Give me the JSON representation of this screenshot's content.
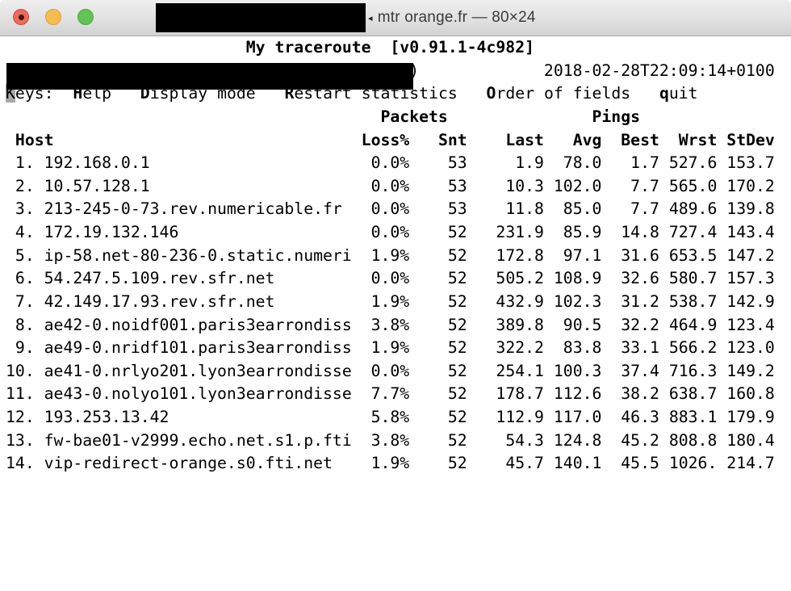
{
  "window": {
    "title": "mtr orange.fr — 80×24",
    "truncation_mark": "◂",
    "controls": {
      "close": "close",
      "minimize": "minimize",
      "zoom": "zoom"
    }
  },
  "terminal": {
    "app_title": "My traceroute",
    "version": "[v0.91.1-4c982]",
    "timestamp": "2018-02-28T22:09:14+0100",
    "host_line_visible_paren": ")",
    "keys": {
      "label": "Keys:",
      "items": [
        {
          "hotkey": "H",
          "rest": "elp"
        },
        {
          "hotkey": "D",
          "rest": "isplay mode"
        },
        {
          "hotkey": "R",
          "rest": "estart statistics"
        },
        {
          "hotkey": "O",
          "rest": "rder of fields"
        },
        {
          "hotkey": "q",
          "rest": "uit"
        }
      ]
    },
    "group_headers": {
      "packets": "Packets",
      "pings": "Pings"
    },
    "columns": [
      "Host",
      "Loss%",
      "Snt",
      "Last",
      "Avg",
      "Best",
      "Wrst",
      "StDev"
    ],
    "rows": [
      {
        "hop": "1",
        "host": "192.168.0.1",
        "loss": "0.0%",
        "snt": "53",
        "last": "1.9",
        "avg": "78.0",
        "best": "1.7",
        "wrst": "527.6",
        "stdev": "153.7"
      },
      {
        "hop": "2",
        "host": "10.57.128.1",
        "loss": "0.0%",
        "snt": "53",
        "last": "10.3",
        "avg": "102.0",
        "best": "7.7",
        "wrst": "565.0",
        "stdev": "170.2"
      },
      {
        "hop": "3",
        "host": "213-245-0-73.rev.numericable.fr",
        "loss": "0.0%",
        "snt": "53",
        "last": "11.8",
        "avg": "85.0",
        "best": "7.7",
        "wrst": "489.6",
        "stdev": "139.8"
      },
      {
        "hop": "4",
        "host": "172.19.132.146",
        "loss": "0.0%",
        "snt": "52",
        "last": "231.9",
        "avg": "85.9",
        "best": "14.8",
        "wrst": "727.4",
        "stdev": "143.4"
      },
      {
        "hop": "5",
        "host": "ip-58.net-80-236-0.static.numeri",
        "loss": "1.9%",
        "snt": "52",
        "last": "172.8",
        "avg": "97.1",
        "best": "31.6",
        "wrst": "653.5",
        "stdev": "147.2"
      },
      {
        "hop": "6",
        "host": "54.247.5.109.rev.sfr.net",
        "loss": "0.0%",
        "snt": "52",
        "last": "505.2",
        "avg": "108.9",
        "best": "32.6",
        "wrst": "580.7",
        "stdev": "157.3"
      },
      {
        "hop": "7",
        "host": "42.149.17.93.rev.sfr.net",
        "loss": "1.9%",
        "snt": "52",
        "last": "432.9",
        "avg": "102.3",
        "best": "31.2",
        "wrst": "538.7",
        "stdev": "142.9"
      },
      {
        "hop": "8",
        "host": "ae42-0.noidf001.paris3earrondiss",
        "loss": "3.8%",
        "snt": "52",
        "last": "389.8",
        "avg": "90.5",
        "best": "32.2",
        "wrst": "464.9",
        "stdev": "123.4"
      },
      {
        "hop": "9",
        "host": "ae49-0.nridf101.paris3earrondiss",
        "loss": "1.9%",
        "snt": "52",
        "last": "322.2",
        "avg": "83.8",
        "best": "33.1",
        "wrst": "566.2",
        "stdev": "123.0"
      },
      {
        "hop": "10",
        "host": "ae41-0.nrlyo201.lyon3earrondisse",
        "loss": "0.0%",
        "snt": "52",
        "last": "254.1",
        "avg": "100.3",
        "best": "37.4",
        "wrst": "716.3",
        "stdev": "149.2"
      },
      {
        "hop": "11",
        "host": "ae43-0.nolyo101.lyon3earrondisse",
        "loss": "7.7%",
        "snt": "52",
        "last": "178.7",
        "avg": "112.6",
        "best": "38.2",
        "wrst": "638.7",
        "stdev": "160.8"
      },
      {
        "hop": "12",
        "host": "193.253.13.42",
        "loss": "5.8%",
        "snt": "52",
        "last": "112.9",
        "avg": "117.0",
        "best": "46.3",
        "wrst": "883.1",
        "stdev": "179.9"
      },
      {
        "hop": "13",
        "host": "fw-bae01-v2999.echo.net.s1.p.fti",
        "loss": "3.8%",
        "snt": "52",
        "last": "54.3",
        "avg": "124.8",
        "best": "45.2",
        "wrst": "808.8",
        "stdev": "180.4"
      },
      {
        "hop": "14",
        "host": "vip-redirect-orange.s0.fti.net",
        "loss": "1.9%",
        "snt": "52",
        "last": "45.7",
        "avg": "140.1",
        "best": "45.5",
        "wrst": "1026.",
        "stdev": "214.7"
      }
    ]
  }
}
